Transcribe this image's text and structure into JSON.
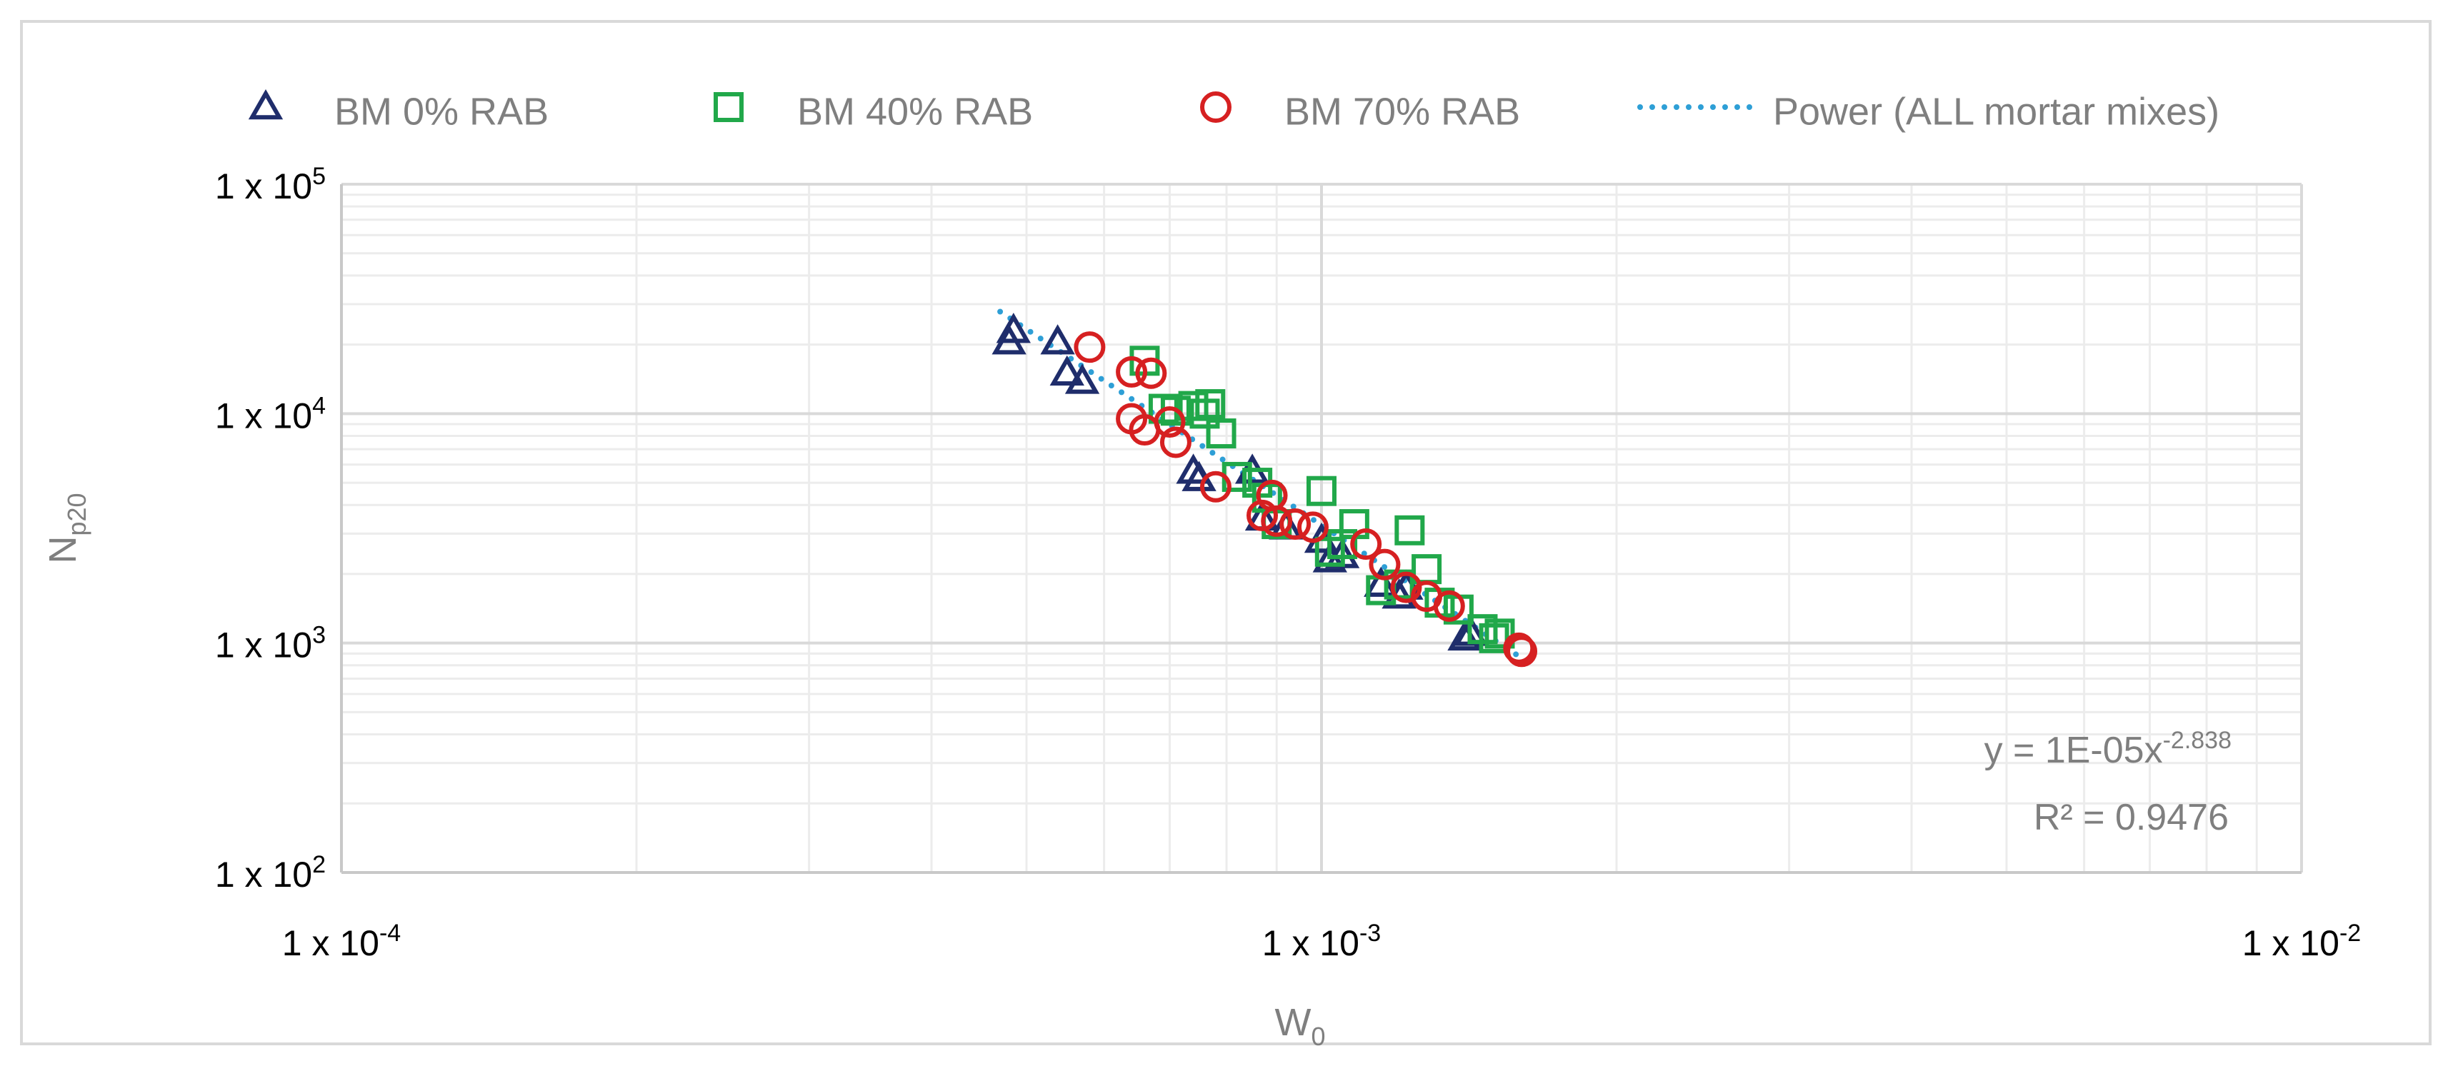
{
  "chart_data": {
    "type": "scatter",
    "title": "",
    "xlabel": "W",
    "xlabel_sub": "0",
    "ylabel": "N",
    "ylabel_sub": "p20",
    "x_scale": "log",
    "y_scale": "log",
    "xlim": [
      0.0001,
      0.01
    ],
    "ylim": [
      100,
      100000
    ],
    "grid": true,
    "legend_position": "top",
    "x_ticks": [
      {
        "value": 0.0001,
        "base": "1 x 10",
        "exp": "-4"
      },
      {
        "value": 0.001,
        "base": "1 x 10",
        "exp": "-3"
      },
      {
        "value": 0.01,
        "base": "1 x 10",
        "exp": "-2"
      }
    ],
    "y_ticks": [
      {
        "value": 100,
        "base": "1 x 10",
        "exp": "2"
      },
      {
        "value": 1000,
        "base": "1 x 10",
        "exp": "3"
      },
      {
        "value": 10000,
        "base": "1 x 10",
        "exp": "4"
      },
      {
        "value": 100000,
        "base": "1 x 10",
        "exp": "5"
      }
    ],
    "series": [
      {
        "name": "BM 0% RAB",
        "marker": "triangle",
        "color": "#1f2d6b",
        "points": [
          [
            0.000485,
            23000
          ],
          [
            0.00048,
            20500
          ],
          [
            0.000538,
            20500
          ],
          [
            0.00055,
            15000
          ],
          [
            0.00057,
            13800
          ],
          [
            0.00074,
            5600
          ],
          [
            0.00075,
            5200
          ],
          [
            0.00085,
            5600
          ],
          [
            0.00087,
            3500
          ],
          [
            0.00092,
            3200
          ],
          [
            0.001,
            2800
          ],
          [
            0.00102,
            2300
          ],
          [
            0.00105,
            2400
          ],
          [
            0.00115,
            1800
          ],
          [
            0.0012,
            1600
          ],
          [
            0.00122,
            1750
          ],
          [
            0.0014,
            1050
          ],
          [
            0.00142,
            1100
          ]
        ]
      },
      {
        "name": "BM 40% RAB",
        "marker": "square",
        "color": "#21a84a",
        "points": [
          [
            0.00066,
            17000
          ],
          [
            0.00069,
            10500
          ],
          [
            0.00071,
            10300
          ],
          [
            0.00074,
            10800
          ],
          [
            0.00076,
            10000
          ],
          [
            0.00077,
            11000
          ],
          [
            0.00079,
            8200
          ],
          [
            0.00082,
            5300
          ],
          [
            0.00086,
            5000
          ],
          [
            0.00088,
            4300
          ],
          [
            0.0009,
            3300
          ],
          [
            0.001,
            4600
          ],
          [
            0.00102,
            2500
          ],
          [
            0.00105,
            2700
          ],
          [
            0.00108,
            3300
          ],
          [
            0.00115,
            1700
          ],
          [
            0.0012,
            1800
          ],
          [
            0.00123,
            3100
          ],
          [
            0.00128,
            2100
          ],
          [
            0.00132,
            1500
          ],
          [
            0.00138,
            1400
          ],
          [
            0.00146,
            1150
          ],
          [
            0.0015,
            1050
          ],
          [
            0.00152,
            1100
          ]
        ]
      },
      {
        "name": "BM 70% RAB",
        "marker": "circle",
        "color": "#d62021",
        "points": [
          [
            0.00058,
            19500
          ],
          [
            0.00064,
            15200
          ],
          [
            0.00067,
            15000
          ],
          [
            0.00064,
            9500
          ],
          [
            0.00066,
            8500
          ],
          [
            0.0007,
            9200
          ],
          [
            0.00071,
            7500
          ],
          [
            0.00078,
            4800
          ],
          [
            0.00089,
            4400
          ],
          [
            0.00087,
            3600
          ],
          [
            0.0009,
            3400
          ],
          [
            0.00094,
            3300
          ],
          [
            0.00098,
            3200
          ],
          [
            0.00111,
            2700
          ],
          [
            0.00116,
            2200
          ],
          [
            0.00122,
            1750
          ],
          [
            0.00128,
            1600
          ],
          [
            0.00135,
            1450
          ],
          [
            0.00159,
            950
          ],
          [
            0.0016,
            920
          ]
        ]
      }
    ],
    "trendline": {
      "name": "Power (ALL mortar mixes)",
      "color": "#2e9fd6",
      "style": "dotted",
      "coefficient": 1e-05,
      "exponent": -2.838,
      "x_range": [
        0.00047,
        0.00158
      ]
    },
    "equation": {
      "prefix": "y = 1E-05x",
      "exponent": "-2.838",
      "r_squared": "R² = 0.9476"
    }
  }
}
